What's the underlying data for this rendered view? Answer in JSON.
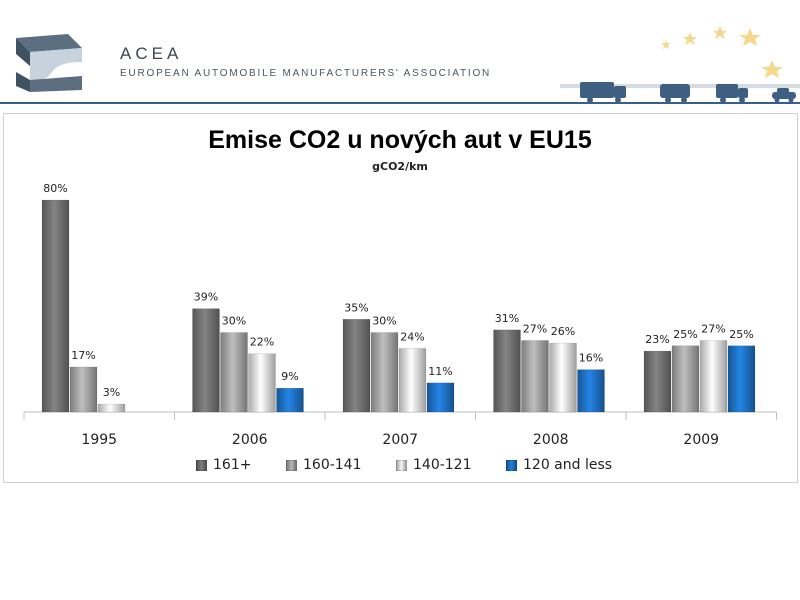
{
  "header": {
    "org_short": "ACEA",
    "org_full": "EUROPEAN AUTOMOBILE MANUFACTURERS' ASSOCIATION",
    "accent_color": "#3a5f86"
  },
  "chart_data": {
    "type": "bar",
    "title": "Emise CO2 u nových aut v EU15",
    "subtitle": "gCO2/km",
    "xlabel": "",
    "ylabel": "",
    "ylim": [
      0,
      85
    ],
    "grid": false,
    "legend_position": "bottom",
    "categories": [
      "1995",
      "2006",
      "2007",
      "2008",
      "2009"
    ],
    "series": [
      {
        "name": "161+",
        "color": "#737373",
        "values": [
          80,
          39,
          35,
          31,
          23
        ],
        "labels": [
          "80%",
          "39%",
          "35%",
          "31%",
          "23%"
        ]
      },
      {
        "name": "160-141",
        "color": "#a6a6a6",
        "values": [
          17,
          30,
          30,
          27,
          25
        ],
        "labels": [
          "17%",
          "30%",
          "30%",
          "27%",
          "25%"
        ]
      },
      {
        "name": "140-121",
        "color": "#e2e2e2",
        "values": [
          3,
          22,
          24,
          26,
          27
        ],
        "labels": [
          "3%",
          "22%",
          "24%",
          "26%",
          "27%"
        ]
      },
      {
        "name": "120 and less",
        "color": "#1f74c8",
        "values": [
          null,
          9,
          11,
          16,
          25
        ],
        "labels": [
          "",
          "9%",
          "11%",
          "16%",
          "25%"
        ]
      }
    ]
  }
}
